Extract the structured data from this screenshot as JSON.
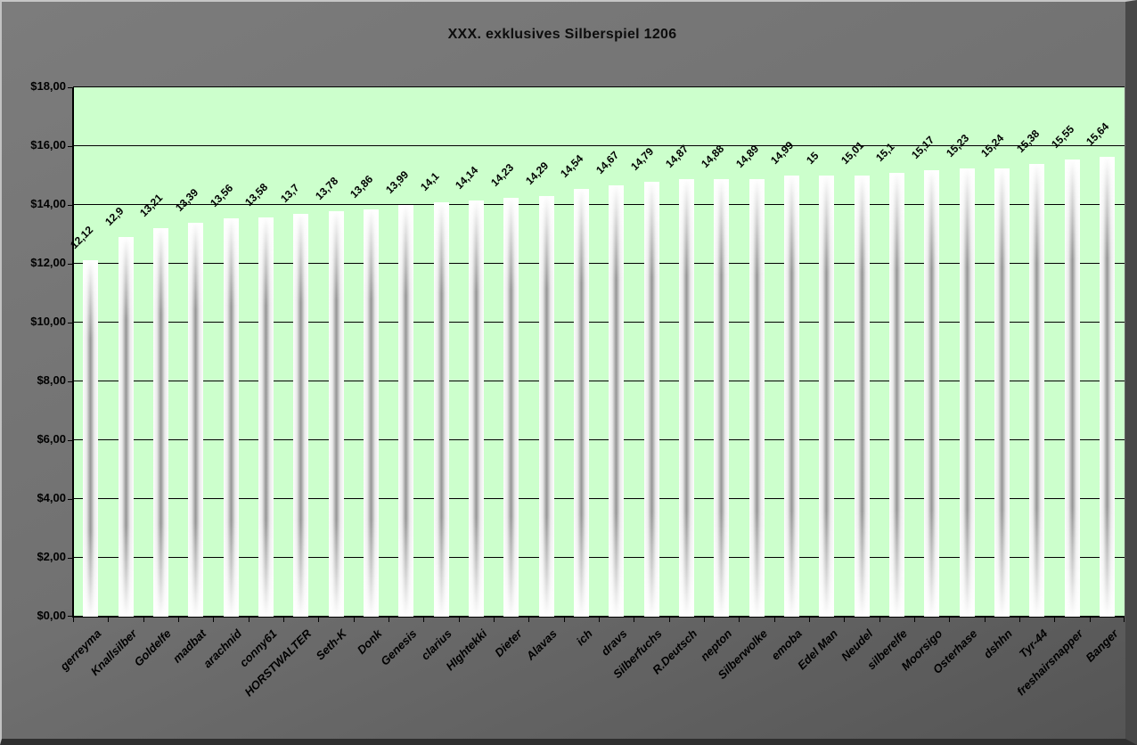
{
  "chart_data": {
    "type": "bar",
    "title": "XXX. exklusives Silberspiel 1206",
    "xlabel": "",
    "ylabel": "",
    "ylim": [
      0,
      18
    ],
    "ytick_step": 2,
    "ytick_labels": [
      "$0,00",
      "$2,00",
      "$4,00",
      "$6,00",
      "$8,00",
      "$10,00",
      "$12,00",
      "$14,00",
      "$16,00",
      "$18,00"
    ],
    "grid": true,
    "legend_position": "none",
    "categories": [
      "gerreyma",
      "Knallsilber",
      "Goldelfe",
      "madbat",
      "arachnid",
      "conny61",
      "HORSTWALTER",
      "Seth-K",
      "Donk",
      "Genesis",
      "clarius",
      "HIghtekki",
      "Dieter",
      "Alavas",
      "ich",
      "dravs",
      "Silberfuchs",
      "R.Deutsch",
      "nepton",
      "Silberwolke",
      "emoba",
      "Edel Man",
      "Neudel",
      "silberelfe",
      "Moorsigo",
      "Osterhase",
      "dshhn",
      "Tyr-44",
      "freshairsnapper",
      "Banger"
    ],
    "values": [
      12.12,
      12.9,
      13.21,
      13.39,
      13.56,
      13.58,
      13.7,
      13.78,
      13.86,
      13.99,
      14.1,
      14.14,
      14.23,
      14.29,
      14.54,
      14.67,
      14.79,
      14.87,
      14.88,
      14.89,
      14.99,
      15,
      15.01,
      15.1,
      15.17,
      15.23,
      15.24,
      15.38,
      15.55,
      15.64
    ],
    "value_labels": [
      "12,12",
      "12,9",
      "13,21",
      "13,39",
      "13,56",
      "13,58",
      "13,7",
      "13,78",
      "13,86",
      "13,99",
      "14,1",
      "14,14",
      "14,23",
      "14,29",
      "14,54",
      "14,67",
      "14,79",
      "14,87",
      "14,88",
      "14,89",
      "14,99",
      "15",
      "15,01",
      "15,1",
      "15,17",
      "15,23",
      "15,24",
      "15,38",
      "15,55",
      "15,64"
    ],
    "colors": {
      "plot_bg": "#ccffcc",
      "outer_bg": "#717171",
      "gridline": "#000000",
      "text": "#000000",
      "bar_edge": "#ffffff",
      "bar_center": "#949494"
    }
  }
}
